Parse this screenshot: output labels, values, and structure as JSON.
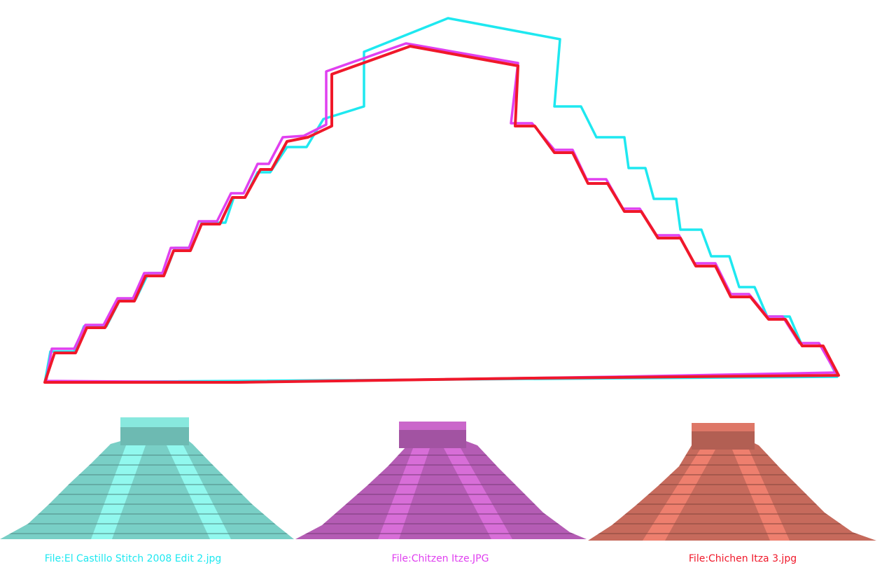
{
  "colors": {
    "cyan": "#1ee8f0",
    "magenta": "#e040f0",
    "red": "#f0182a",
    "photo_cyan": "#79cfc6",
    "photo_magenta": "#b45cb4",
    "photo_red": "#c66a5c"
  },
  "outlines": [
    {
      "name": "cyan-outline",
      "color_key": "cyan"
    },
    {
      "name": "magenta-outline",
      "color_key": "magenta"
    },
    {
      "name": "red-outline",
      "color_key": "red"
    }
  ],
  "captions": [
    {
      "text": "File:El Castillo Stitch 2008 Edit 2.jpg",
      "color_key": "cyan"
    },
    {
      "text": "File:Chitzen Itze.JPG",
      "color_key": "magenta"
    },
    {
      "text": "File:Chichen Itza 3.jpg",
      "color_key": "red"
    }
  ]
}
